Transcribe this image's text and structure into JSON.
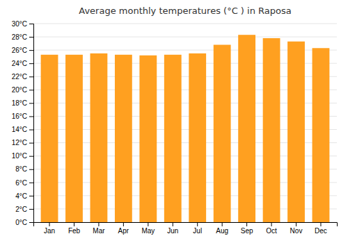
{
  "chart_data": {
    "type": "bar",
    "title": "Average monthly temperatures (°C ) in Raposa",
    "categories": [
      "Jan",
      "Feb",
      "Mar",
      "Apr",
      "May",
      "Jun",
      "Jul",
      "Aug",
      "Sep",
      "Oct",
      "Nov",
      "Dec"
    ],
    "values": [
      25.3,
      25.3,
      25.5,
      25.3,
      25.2,
      25.3,
      25.5,
      26.8,
      28.3,
      27.8,
      27.3,
      26.3
    ],
    "color": "#FFA020",
    "ylim": [
      0,
      30
    ],
    "yticks": [
      {
        "value": 0,
        "label": "0°C"
      },
      {
        "value": 2,
        "label": "2°C"
      },
      {
        "value": 4,
        "label": "4°C"
      },
      {
        "value": 6,
        "label": "6°C"
      },
      {
        "value": 8,
        "label": "8°C"
      },
      {
        "value": 10,
        "label": "10°C"
      },
      {
        "value": 12,
        "label": "12°C"
      },
      {
        "value": 14,
        "label": "14°C"
      },
      {
        "value": 16,
        "label": "16°C"
      },
      {
        "value": 18,
        "label": "18°C"
      },
      {
        "value": 20,
        "label": "20°C"
      },
      {
        "value": 22,
        "label": "22°C"
      },
      {
        "value": 24,
        "label": "24°C"
      },
      {
        "value": 26,
        "label": "26°C"
      },
      {
        "value": 28,
        "label": "28°C"
      },
      {
        "value": 30,
        "label": "30°C"
      }
    ],
    "grid": true
  }
}
